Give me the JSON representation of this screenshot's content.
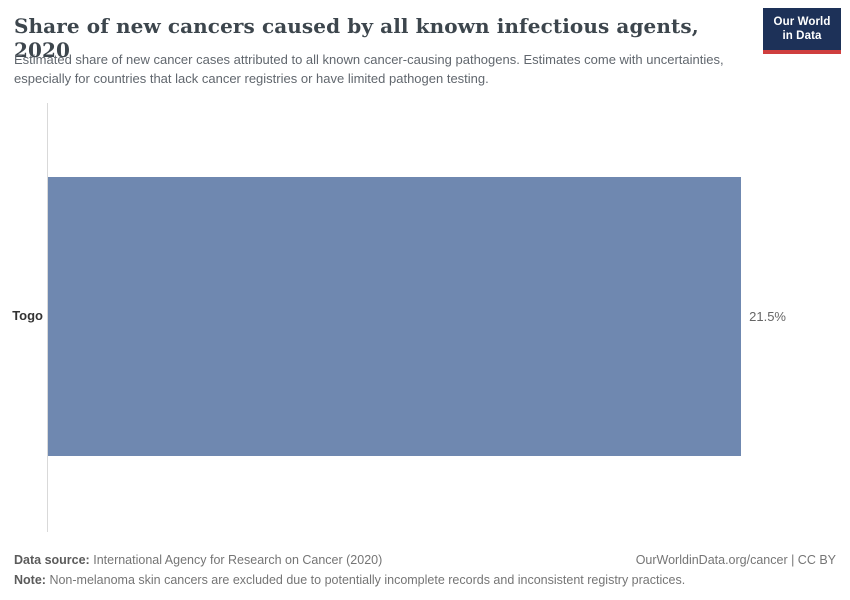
{
  "header": {
    "title": "Share of new cancers caused by all known infectious agents, 2020",
    "subtitle": "Estimated share of new cancer cases attributed to all known cancer-causing pathogens. Estimates come with uncertainties, especially for countries that lack cancer registries or have limited pathogen testing.",
    "logo": {
      "line1": "Our World",
      "line2": "in Data",
      "bg_color": "#1d3158",
      "accent_color": "#cf3e3e",
      "text_color": "#ffffff"
    }
  },
  "chart_data": {
    "type": "bar",
    "orientation": "horizontal",
    "title": "Share of new cancers caused by all known infectious agents, 2020",
    "categories": [
      "Togo"
    ],
    "values": [
      21.5
    ],
    "value_labels": [
      "21.5%"
    ],
    "bar_color": "#6f88b0",
    "xlim": [
      0,
      21.5
    ],
    "grid": false,
    "legend": "none",
    "axis_line_color": "#d9d9d9"
  },
  "footer": {
    "data_source_label": "Data source:",
    "data_source": "International Agency for Research on Cancer (2020)",
    "note_label": "Note:",
    "note": "Non-melanoma skin cancers are excluded due to potentially incomplete records and inconsistent registry practices.",
    "link": "OurWorldinData.org/cancer | CC BY"
  }
}
